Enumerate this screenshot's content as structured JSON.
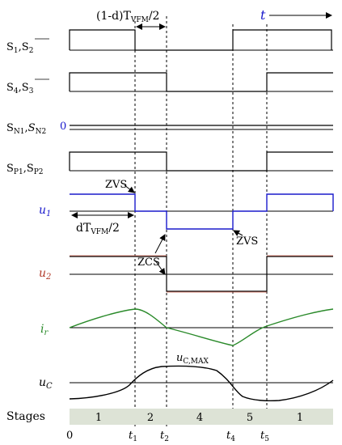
{
  "colors": {
    "black": "#000000",
    "blue": "#1a1acc",
    "red": "#b23a2a",
    "green": "#2a8a2a",
    "stage_bg": "#dde3d6"
  },
  "top_annotation": {
    "interval_label": "(1-d)T",
    "interval_sub": "VFM",
    "interval_suffix": "/2",
    "time_label": "t"
  },
  "signals": {
    "s1_s2": {
      "label_a": "S",
      "sub_a": "1",
      "sep": ",",
      "label_b": "S",
      "sub_b": "2",
      "bar_b": true
    },
    "s4_s3": {
      "label_a": "S",
      "sub_a": "4",
      "sep": ",",
      "label_b": "S",
      "sub_b": "3",
      "bar_b": true
    },
    "sn": {
      "label_a": "S",
      "sub_a": "N1",
      "sep": ",",
      "label_b": "S",
      "sub_b": "N2",
      "zero": "0"
    },
    "sp": {
      "label_a": "S",
      "sub_a": "P1",
      "sep": ",",
      "label_b": "S",
      "sub_b": "P2"
    },
    "u1": {
      "label": "u",
      "sub": "1"
    },
    "u2": {
      "label": "u",
      "sub": "2"
    },
    "ir": {
      "label": "i",
      "sub": "r"
    },
    "uc": {
      "label": "u",
      "sub": "C",
      "max_label": "u",
      "max_sub": "C,MAX"
    }
  },
  "annotations": {
    "zvs_1": "ZVS",
    "zcs": "ZCS",
    "zvs_2": "ZVS",
    "dt_label": "dT",
    "dt_sub": "VFM",
    "dt_suffix": "/2"
  },
  "stages": {
    "label": "Stages",
    "items": [
      "1",
      "2",
      "4",
      "5",
      "1"
    ]
  },
  "time_axis": {
    "zero": "0",
    "ticks": [
      {
        "label": "t",
        "sub": "1"
      },
      {
        "label": "t",
        "sub": "2"
      },
      {
        "label": "t",
        "sub": "4"
      },
      {
        "label": "t",
        "sub": "5"
      }
    ]
  }
}
